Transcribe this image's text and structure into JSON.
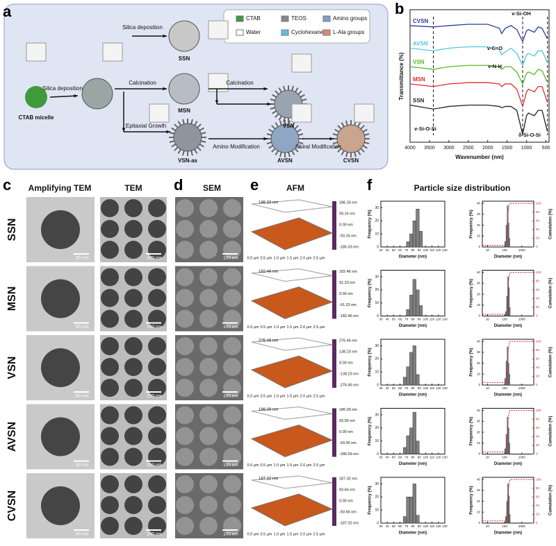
{
  "panel_labels": [
    "a",
    "b",
    "c",
    "d",
    "e",
    "f"
  ],
  "scheme": {
    "steps": [
      "Silica deposition",
      "Calcination",
      "Calcination",
      "Silica deposition",
      "Epitaxial Growth",
      "Amino Modification",
      "Chiral Modification"
    ],
    "particles": [
      "SSN",
      "MSN",
      "VSN",
      "CTAB micelle",
      "VSN-as",
      "AVSN",
      "CVSN"
    ],
    "legend": [
      "CTAB",
      "TEOS",
      "Amino groups",
      "Water",
      "Cyclohexane",
      "L-Ala groups"
    ]
  },
  "ftir": {
    "type": "line",
    "x_label": "Wavenumber (nm)",
    "y_label": "Transmittance (%)",
    "x": [
      4000,
      3400,
      3000,
      2500,
      2000,
      1700,
      1640,
      1550,
      1400,
      1250,
      1100,
      1000,
      950,
      800,
      700,
      600,
      460
    ],
    "xlim": [
      4000,
      420
    ],
    "xticks": [
      4000,
      3500,
      3000,
      2500,
      2000,
      1500,
      1000,
      500
    ],
    "ylim": [
      0,
      100
    ],
    "vlines": [
      3400,
      1100,
      460
    ],
    "series": [
      {
        "name": "CVSN",
        "color": "#2a3a9c",
        "values": [
          88,
          87,
          88,
          89,
          89,
          86,
          82,
          86,
          88,
          85,
          76,
          84,
          85,
          83,
          87,
          86,
          78
        ]
      },
      {
        "name": "AVSN",
        "color": "#4fc6df",
        "values": [
          71,
          69,
          71,
          72,
          72,
          70,
          66,
          68,
          71,
          67,
          58,
          66,
          67,
          65,
          69,
          69,
          60
        ]
      },
      {
        "name": "VSN",
        "color": "#55bb22",
        "values": [
          57,
          55,
          57,
          58,
          58,
          57,
          55,
          57,
          57,
          53,
          44,
          52,
          53,
          51,
          55,
          54,
          45
        ]
      },
      {
        "name": "MSN",
        "color": "#dd2c2c",
        "values": [
          44,
          42,
          44,
          45,
          45,
          44,
          42,
          44,
          44,
          40,
          27,
          38,
          40,
          38,
          42,
          42,
          30
        ]
      },
      {
        "name": "SSN",
        "color": "#222222",
        "values": [
          28,
          25,
          27,
          28,
          28,
          27,
          26,
          27,
          27,
          24,
          6,
          20,
          22,
          20,
          24,
          24,
          8
        ]
      }
    ],
    "annotations": [
      "v-Si-OH",
      "v-C=O",
      "v-N-H",
      "v-Si-O-Si",
      "δ-Si-O-Si"
    ]
  },
  "headers": {
    "amp_tem": "Amplifying TEM",
    "tem": "TEM",
    "sem": "SEM",
    "afm": "AFM",
    "size": "Particle size distribution"
  },
  "hist_axes": {
    "xlim": [
      30,
      130
    ],
    "xticks": [
      30,
      40,
      50,
      60,
      70,
      80,
      90,
      100,
      110,
      120,
      130
    ],
    "ylim": [
      0,
      35
    ],
    "yticks": [
      0,
      10,
      20,
      30
    ],
    "x_label": "Diameter (nm)",
    "y_label": "Frequency (%)"
  },
  "dist_axes": {
    "xlim": [
      5,
      5000
    ],
    "xticks": [
      10,
      100,
      1000
    ],
    "ylim": [
      0,
      42
    ],
    "yticks": [
      0,
      10,
      20,
      30,
      40
    ],
    "y2lim": [
      0,
      105
    ],
    "y2ticks": [
      0,
      20,
      40,
      60,
      80,
      100
    ],
    "x_label": "Diameter (nm)",
    "y_label": "Frequency (%)",
    "y2_label": "Cumulation (%)"
  },
  "afm_axis": [
    "0.0 μm",
    "0.5 μm",
    "1.0 μm",
    "1.5 μm",
    "2.0 μm",
    "2.5 μm"
  ],
  "rows": [
    {
      "name": "SSN",
      "amp_scale": "50 nm",
      "tem_scale": "100 nm",
      "sem_scale": "100 nm",
      "afm": [
        "186.33 nm",
        "93.16 nm",
        "0.00 nm",
        "-93.16 nm",
        "-186.33 nm"
      ],
      "hist": {
        "bins": [
          70,
          75,
          80,
          85,
          90,
          95
        ],
        "counts": [
          4,
          10,
          20,
          29,
          12
        ]
      },
      "dist": {
        "bins": [
          100,
          120,
          140,
          160,
          180,
          200
        ],
        "counts": [
          5,
          20,
          38,
          22,
          8
        ],
        "cum_x": [
          5,
          100,
          120,
          140,
          160,
          180,
          200,
          5000
        ],
        "cum_values": [
          4,
          4,
          10,
          35,
          80,
          95,
          100,
          100
        ]
      }
    },
    {
      "name": "MSN",
      "amp_scale": "50 nm",
      "tem_scale": "100 nm",
      "sem_scale": "100 nm",
      "afm": [
        "182.46 nm",
        "91.23 nm",
        "0.00 nm",
        "-91.23 nm",
        "-182.46 nm"
      ],
      "hist": {
        "bins": [
          70,
          75,
          80,
          85,
          90,
          95
        ],
        "counts": [
          5,
          16,
          28,
          20,
          8
        ]
      },
      "dist": {
        "bins": [
          110,
          130,
          150,
          170,
          190,
          210
        ],
        "counts": [
          4,
          18,
          36,
          26,
          8
        ],
        "cum_x": [
          5,
          110,
          130,
          150,
          170,
          190,
          210,
          5000
        ],
        "cum_values": [
          4,
          4,
          10,
          40,
          82,
          96,
          100,
          100
        ]
      }
    },
    {
      "name": "VSN",
      "amp_scale": "50 nm",
      "tem_scale": "100 nm",
      "sem_scale": "100 nm",
      "afm": [
        "276.46 nm",
        "138.23 nm",
        "0.00 nm",
        "-138.23 nm",
        "-276.46 nm"
      ],
      "hist": {
        "bins": [
          65,
          70,
          75,
          80,
          85,
          90
        ],
        "counts": [
          6,
          14,
          25,
          30,
          8
        ]
      },
      "dist": {
        "bins": [
          100,
          120,
          140,
          160,
          180,
          200
        ],
        "counts": [
          6,
          22,
          35,
          20,
          10
        ],
        "cum_x": [
          5,
          100,
          120,
          140,
          160,
          180,
          200,
          5000
        ],
        "cum_values": [
          6,
          6,
          12,
          40,
          78,
          94,
          100,
          100
        ]
      }
    },
    {
      "name": "AVSN",
      "amp_scale": "50 nm",
      "tem_scale": "100 nm",
      "sem_scale": "100 nm",
      "afm": [
        "186.09 nm",
        "93.05 nm",
        "0.00 nm",
        "-93.05 nm",
        "-186.09 nm"
      ],
      "hist": {
        "bins": [
          65,
          70,
          75,
          80,
          85,
          90
        ],
        "counts": [
          5,
          14,
          20,
          32,
          10
        ]
      },
      "dist": {
        "bins": [
          100,
          120,
          140,
          160,
          180,
          200
        ],
        "counts": [
          5,
          18,
          34,
          24,
          10
        ],
        "cum_x": [
          5,
          100,
          120,
          140,
          160,
          180,
          200,
          5000
        ],
        "cum_values": [
          5,
          5,
          10,
          36,
          80,
          95,
          100,
          100
        ]
      }
    },
    {
      "name": "CVSN",
      "amp_scale": "50 nm",
      "tem_scale": "100 nm",
      "sem_scale": "100 nm",
      "afm": [
        "187.32 nm",
        "93.66 nm",
        "0.00 nm",
        "-93.66 nm",
        "-187.32 nm"
      ],
      "hist": {
        "bins": [
          65,
          70,
          75,
          80,
          85,
          90
        ],
        "counts": [
          5,
          20,
          20,
          30,
          6
        ]
      },
      "dist": {
        "bins": [
          110,
          130,
          150,
          170,
          190,
          210
        ],
        "counts": [
          6,
          20,
          36,
          25,
          8
        ],
        "cum_x": [
          5,
          110,
          130,
          150,
          170,
          190,
          210,
          5000
        ],
        "cum_values": [
          5,
          5,
          12,
          38,
          80,
          95,
          100,
          100
        ]
      }
    }
  ]
}
